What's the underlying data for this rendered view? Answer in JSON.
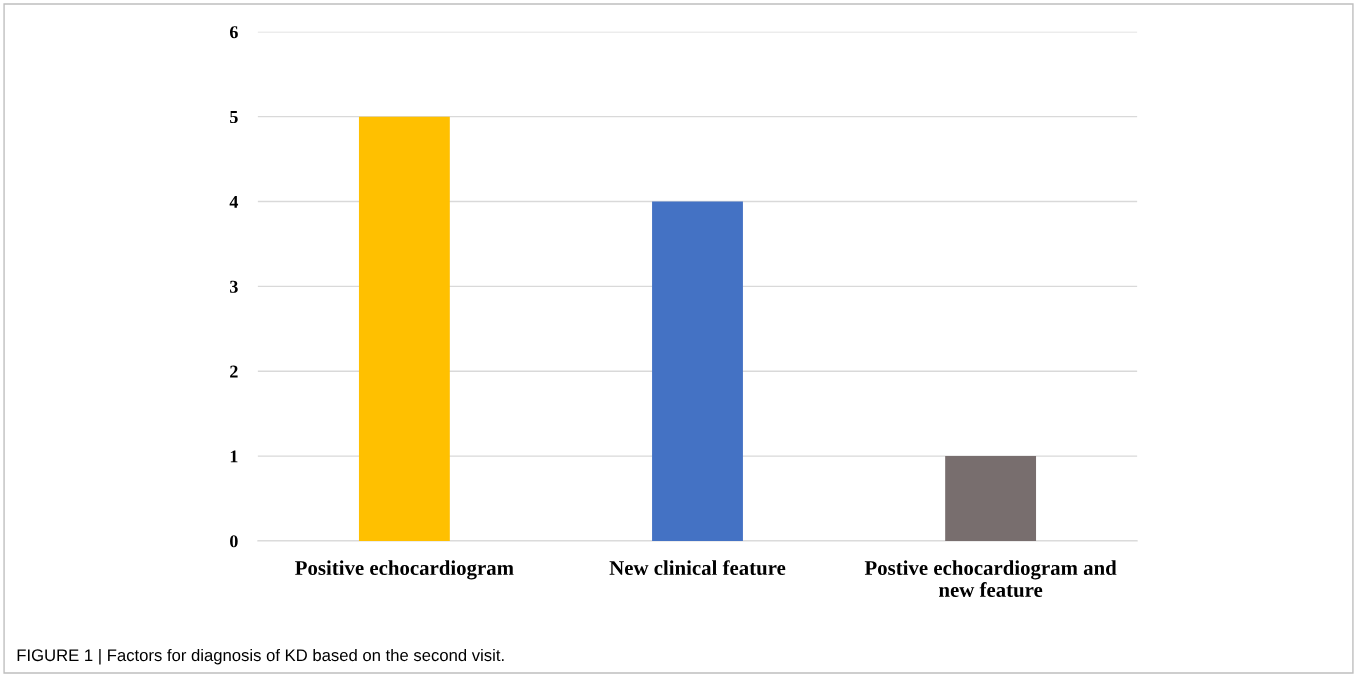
{
  "chart_data": {
    "type": "bar",
    "categories": [
      "Positive echocardiogram",
      "New clinical feature",
      "Postive echocardiogram and\nnew feature"
    ],
    "values": [
      5,
      4,
      1
    ],
    "colors": [
      "#ffc000",
      "#4472c4",
      "#786e6e"
    ],
    "ylim": [
      0,
      6
    ],
    "yticks": [
      0,
      1,
      2,
      3,
      4,
      5,
      6
    ],
    "grid": "y",
    "annotations": [
      "FIGURE 1 | Factors for diagnosis of KD based on the second visit."
    ]
  }
}
